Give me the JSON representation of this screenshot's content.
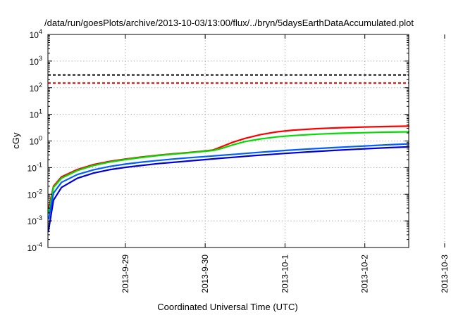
{
  "chart_data": {
    "type": "line",
    "title": "/data/run/goesPlots/archive/2013-10-03/13:00/flux/../bryn/5daysEarthDataAccumulated.plot",
    "xlabel": "Coordinated Universal Time (UTC)",
    "ylabel": "cGy",
    "y_scale": "log",
    "ylim_exponents": [
      -4,
      4
    ],
    "y_ticks": [
      {
        "base": "10",
        "exp": "-4"
      },
      {
        "base": "10",
        "exp": "-3"
      },
      {
        "base": "10",
        "exp": "-2"
      },
      {
        "base": "10",
        "exp": "-1"
      },
      {
        "base": "10",
        "exp": "0"
      },
      {
        "base": "10",
        "exp": "1"
      },
      {
        "base": "10",
        "exp": "2"
      },
      {
        "base": "10",
        "exp": "3"
      },
      {
        "base": "10",
        "exp": "4"
      }
    ],
    "xlim_days": [
      -1.97,
      2.55
    ],
    "x_ticks": [
      {
        "label": "2013-9-29",
        "day": -1
      },
      {
        "label": "2013-9-30",
        "day": 0
      },
      {
        "label": "2013-10-1",
        "day": 1
      },
      {
        "label": "2013-10-2",
        "day": 2
      },
      {
        "label": "2013-10-3",
        "day": 3
      }
    ],
    "grid": true,
    "thresholds": [
      {
        "color": "#000000",
        "value": 300
      },
      {
        "color": "#ff0000",
        "value": 150
      }
    ],
    "series": [
      {
        "color": "#ff0000",
        "points": [
          [
            -1.96,
            0.003
          ],
          [
            -1.9,
            0.02
          ],
          [
            -1.8,
            0.045
          ],
          [
            -1.6,
            0.085
          ],
          [
            -1.4,
            0.13
          ],
          [
            -1.2,
            0.17
          ],
          [
            -1,
            0.21
          ],
          [
            -0.8,
            0.25
          ],
          [
            -0.6,
            0.29
          ],
          [
            -0.4,
            0.33
          ],
          [
            -0.2,
            0.37
          ],
          [
            -0.05,
            0.41
          ],
          [
            0.1,
            0.46
          ],
          [
            0.2,
            0.6
          ],
          [
            0.35,
            0.9
          ],
          [
            0.5,
            1.25
          ],
          [
            0.7,
            1.75
          ],
          [
            0.9,
            2.2
          ],
          [
            1.1,
            2.55
          ],
          [
            1.4,
            2.9
          ],
          [
            1.7,
            3.15
          ],
          [
            2,
            3.35
          ],
          [
            2.3,
            3.5
          ],
          [
            2.55,
            3.6
          ]
        ]
      },
      {
        "color": "#00dd00",
        "points": [
          [
            -1.96,
            0.002
          ],
          [
            -1.9,
            0.018
          ],
          [
            -1.8,
            0.04
          ],
          [
            -1.6,
            0.078
          ],
          [
            -1.4,
            0.12
          ],
          [
            -1.2,
            0.16
          ],
          [
            -1,
            0.2
          ],
          [
            -0.8,
            0.24
          ],
          [
            -0.6,
            0.28
          ],
          [
            -0.4,
            0.32
          ],
          [
            -0.2,
            0.36
          ],
          [
            -0.05,
            0.4
          ],
          [
            0.1,
            0.44
          ],
          [
            0.2,
            0.52
          ],
          [
            0.35,
            0.72
          ],
          [
            0.5,
            0.95
          ],
          [
            0.7,
            1.2
          ],
          [
            0.9,
            1.42
          ],
          [
            1.1,
            1.6
          ],
          [
            1.4,
            1.8
          ],
          [
            1.7,
            1.95
          ],
          [
            2,
            2.05
          ],
          [
            2.3,
            2.15
          ],
          [
            2.55,
            2.2
          ]
        ]
      },
      {
        "color": "#0060ff",
        "points": [
          [
            -1.96,
            0.0012
          ],
          [
            -1.9,
            0.011
          ],
          [
            -1.8,
            0.028
          ],
          [
            -1.6,
            0.055
          ],
          [
            -1.4,
            0.082
          ],
          [
            -1.2,
            0.11
          ],
          [
            -1,
            0.135
          ],
          [
            -0.8,
            0.16
          ],
          [
            -0.6,
            0.185
          ],
          [
            -0.4,
            0.21
          ],
          [
            -0.2,
            0.235
          ],
          [
            0,
            0.26
          ],
          [
            0.2,
            0.29
          ],
          [
            0.4,
            0.32
          ],
          [
            0.6,
            0.36
          ],
          [
            0.8,
            0.4
          ],
          [
            1,
            0.44
          ],
          [
            1.3,
            0.5
          ],
          [
            1.6,
            0.56
          ],
          [
            2,
            0.65
          ],
          [
            2.3,
            0.72
          ],
          [
            2.55,
            0.78
          ]
        ]
      },
      {
        "color": "#0000dd",
        "points": [
          [
            -1.965,
            0.0004
          ],
          [
            -1.9,
            0.006
          ],
          [
            -1.8,
            0.018
          ],
          [
            -1.6,
            0.04
          ],
          [
            -1.4,
            0.062
          ],
          [
            -1.2,
            0.083
          ],
          [
            -1,
            0.102
          ],
          [
            -0.8,
            0.12
          ],
          [
            -0.6,
            0.14
          ],
          [
            -0.4,
            0.158
          ],
          [
            -0.2,
            0.178
          ],
          [
            0,
            0.2
          ],
          [
            0.2,
            0.225
          ],
          [
            0.4,
            0.25
          ],
          [
            0.6,
            0.28
          ],
          [
            0.8,
            0.31
          ],
          [
            1,
            0.34
          ],
          [
            1.3,
            0.39
          ],
          [
            1.6,
            0.44
          ],
          [
            2,
            0.51
          ],
          [
            2.3,
            0.56
          ],
          [
            2.55,
            0.6
          ]
        ]
      }
    ]
  }
}
